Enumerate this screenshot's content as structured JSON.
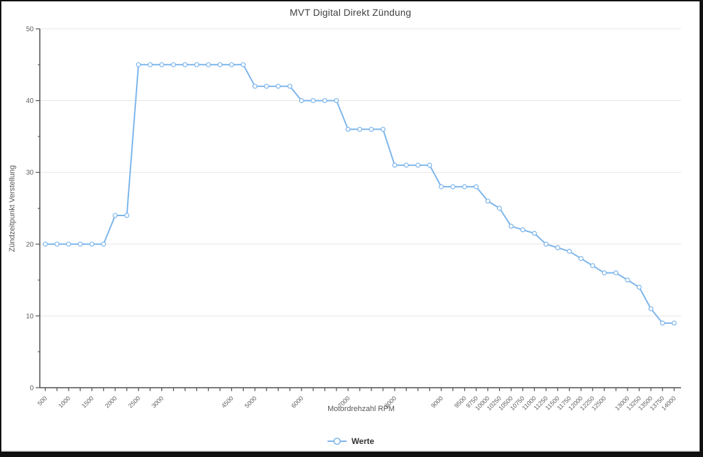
{
  "chart_data": {
    "type": "line",
    "title": "MVT Digital Direkt Zündung",
    "xlabel": "Motordrehzahl RPM",
    "ylabel": "Zündzeitpunkt Verstellung",
    "legend": "Werte",
    "ylim": [
      0,
      50
    ],
    "y_major_ticks": [
      0,
      10,
      20,
      30,
      40,
      50
    ],
    "y_minor_step": 5,
    "grid": "horizontal-only",
    "legend_position": "bottom-center",
    "x": [
      500,
      750,
      1000,
      1250,
      1500,
      1750,
      2000,
      2250,
      2500,
      2750,
      3000,
      3250,
      3500,
      3750,
      4000,
      4250,
      4500,
      4750,
      5000,
      5250,
      5500,
      5750,
      6000,
      6250,
      6500,
      6750,
      7000,
      7250,
      7500,
      7750,
      8000,
      8250,
      8500,
      8750,
      9000,
      9250,
      9500,
      9750,
      10000,
      10250,
      10500,
      10750,
      11000,
      11250,
      11500,
      11750,
      12000,
      12250,
      12500,
      12750,
      13000,
      13250,
      13500,
      13750,
      14000
    ],
    "values": [
      20,
      20,
      20,
      20,
      20,
      20,
      24,
      24,
      45,
      45,
      45,
      45,
      45,
      45,
      45,
      45,
      45,
      45,
      42,
      42,
      42,
      42,
      40,
      40,
      40,
      40,
      36,
      36,
      36,
      36,
      31,
      31,
      31,
      31,
      28,
      28,
      28,
      28,
      26,
      25,
      22.5,
      22,
      21.5,
      20,
      19.5,
      19,
      18,
      17,
      16,
      16,
      15,
      14,
      11,
      9,
      9
    ],
    "x_tick_labels": [
      [
        0,
        "500"
      ],
      [
        2,
        "1000"
      ],
      [
        4,
        "1500"
      ],
      [
        6,
        "2000"
      ],
      [
        8,
        "2500"
      ],
      [
        10,
        "3000"
      ],
      [
        16,
        "4500"
      ],
      [
        18,
        "5000"
      ],
      [
        22,
        "6000"
      ],
      [
        26,
        "7000"
      ],
      [
        30,
        "8000"
      ],
      [
        34,
        "9000"
      ],
      [
        36,
        "9500"
      ],
      [
        37,
        "9750"
      ],
      [
        38,
        "10000"
      ],
      [
        39,
        "10250"
      ],
      [
        40,
        "10500"
      ],
      [
        41,
        "10750"
      ],
      [
        42,
        "11000"
      ],
      [
        43,
        "11250"
      ],
      [
        44,
        "11500"
      ],
      [
        45,
        "11750"
      ],
      [
        46,
        "12000"
      ],
      [
        47,
        "12250"
      ],
      [
        48,
        "12500"
      ],
      [
        50,
        "13000"
      ],
      [
        51,
        "13250"
      ],
      [
        52,
        "13500"
      ],
      [
        53,
        "13750"
      ],
      [
        54,
        "14000"
      ]
    ],
    "colors": {
      "series": "#7cb5ec",
      "marker_fill": "#ffffff",
      "grid": "#e6e6e6",
      "axis": "#4d4d4d",
      "tick_label": "#606060",
      "title": "#404040",
      "legend_text": "#333333"
    }
  }
}
